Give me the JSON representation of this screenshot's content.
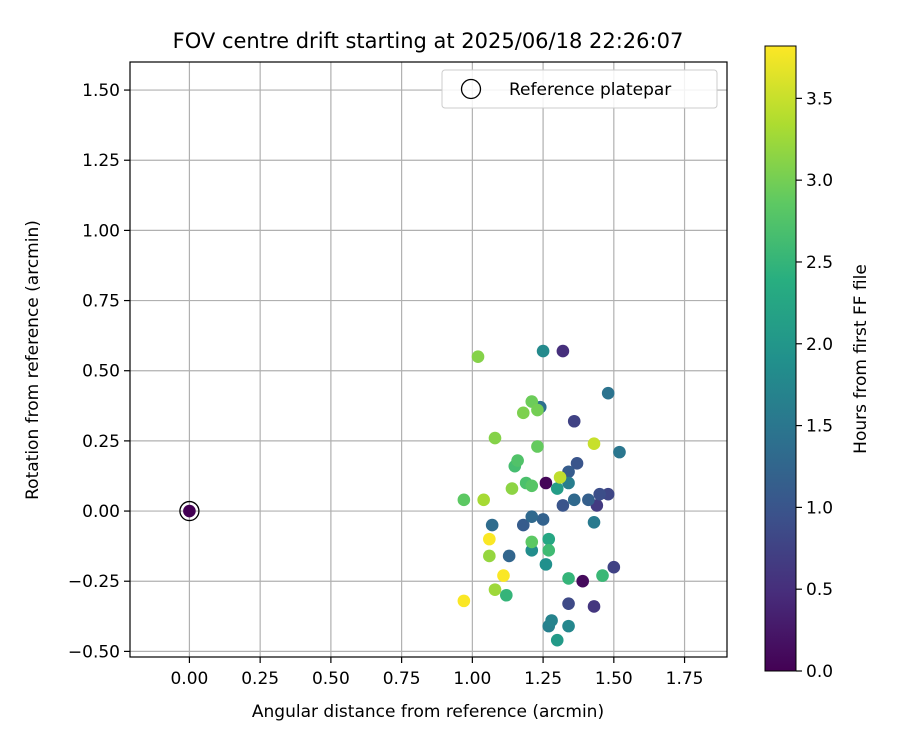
{
  "chart_data": {
    "type": "scatter",
    "title": "FOV centre drift starting at 2025/06/18 22:26:07",
    "xlabel": "Angular distance from reference (arcmin)",
    "ylabel": "Rotation from reference (arcmin)",
    "xlim": [
      -0.21,
      1.9
    ],
    "ylim": [
      -0.52,
      1.6
    ],
    "xticks": [
      0.0,
      0.25,
      0.5,
      0.75,
      1.0,
      1.25,
      1.5,
      1.75
    ],
    "xtick_labels": [
      "0.00",
      "0.25",
      "0.50",
      "0.75",
      "1.00",
      "1.25",
      "1.50",
      "1.75"
    ],
    "yticks": [
      -0.5,
      -0.25,
      0.0,
      0.25,
      0.5,
      0.75,
      1.0,
      1.25,
      1.5
    ],
    "ytick_labels": [
      "−0.50",
      "−0.25",
      "0.00",
      "0.25",
      "0.50",
      "0.75",
      "1.00",
      "1.25",
      "1.50"
    ],
    "grid": true,
    "legend": {
      "placement": "top-right",
      "label": "Reference platepar"
    },
    "reference_point": {
      "x": 0.0,
      "y": 0.0
    },
    "colorbar": {
      "label": "Hours from first FF file",
      "colormap": "viridis",
      "range": [
        0.0,
        3.82
      ],
      "ticks": [
        0.0,
        0.5,
        1.0,
        1.5,
        2.0,
        2.5,
        3.0,
        3.5
      ],
      "tick_labels": [
        "0.0",
        "0.5",
        "1.0",
        "1.5",
        "2.0",
        "2.5",
        "3.0",
        "3.5"
      ]
    },
    "points": [
      {
        "x": 0.0,
        "y": 0.0,
        "hours": 0.0
      },
      {
        "x": 1.26,
        "y": 0.1,
        "hours": 0.05
      },
      {
        "x": 1.39,
        "y": -0.25,
        "hours": 0.1
      },
      {
        "x": 1.32,
        "y": 0.57,
        "hours": 0.5
      },
      {
        "x": 1.43,
        "y": -0.34,
        "hours": 0.6
      },
      {
        "x": 1.44,
        "y": 0.02,
        "hours": 0.65
      },
      {
        "x": 1.36,
        "y": 0.32,
        "hours": 0.75
      },
      {
        "x": 1.5,
        "y": -0.2,
        "hours": 0.75
      },
      {
        "x": 1.48,
        "y": 0.06,
        "hours": 0.8
      },
      {
        "x": 1.34,
        "y": -0.33,
        "hours": 0.85
      },
      {
        "x": 1.45,
        "y": 0.06,
        "hours": 0.9
      },
      {
        "x": 1.37,
        "y": 0.17,
        "hours": 1.0
      },
      {
        "x": 1.32,
        "y": 0.02,
        "hours": 1.0
      },
      {
        "x": 1.18,
        "y": -0.05,
        "hours": 1.1
      },
      {
        "x": 1.34,
        "y": 0.14,
        "hours": 1.1
      },
      {
        "x": 1.41,
        "y": 0.04,
        "hours": 1.15
      },
      {
        "x": 1.25,
        "y": -0.03,
        "hours": 1.2
      },
      {
        "x": 1.13,
        "y": -0.16,
        "hours": 1.25
      },
      {
        "x": 1.21,
        "y": -0.02,
        "hours": 1.3
      },
      {
        "x": 1.36,
        "y": 0.04,
        "hours": 1.3
      },
      {
        "x": 1.07,
        "y": -0.05,
        "hours": 1.35
      },
      {
        "x": 1.24,
        "y": 0.37,
        "hours": 1.4
      },
      {
        "x": 1.48,
        "y": 0.42,
        "hours": 1.45
      },
      {
        "x": 1.52,
        "y": 0.21,
        "hours": 1.5
      },
      {
        "x": 1.43,
        "y": -0.04,
        "hours": 1.55
      },
      {
        "x": 1.34,
        "y": 0.1,
        "hours": 1.6
      },
      {
        "x": 1.27,
        "y": -0.41,
        "hours": 1.65
      },
      {
        "x": 1.28,
        "y": -0.39,
        "hours": 1.7
      },
      {
        "x": 1.34,
        "y": -0.41,
        "hours": 1.75
      },
      {
        "x": 1.25,
        "y": 0.57,
        "hours": 1.8
      },
      {
        "x": 1.21,
        "y": -0.14,
        "hours": 1.85
      },
      {
        "x": 1.26,
        "y": -0.19,
        "hours": 1.9
      },
      {
        "x": 1.3,
        "y": -0.46,
        "hours": 2.05
      },
      {
        "x": 1.3,
        "y": 0.08,
        "hours": 2.1
      },
      {
        "x": 1.27,
        "y": -0.1,
        "hours": 2.25
      },
      {
        "x": 1.12,
        "y": -0.3,
        "hours": 2.5
      },
      {
        "x": 1.34,
        "y": -0.24,
        "hours": 2.5
      },
      {
        "x": 1.46,
        "y": -0.23,
        "hours": 2.55
      },
      {
        "x": 1.27,
        "y": -0.14,
        "hours": 2.6
      },
      {
        "x": 1.15,
        "y": 0.16,
        "hours": 2.65
      },
      {
        "x": 1.19,
        "y": 0.1,
        "hours": 2.7
      },
      {
        "x": 1.16,
        "y": 0.18,
        "hours": 2.75
      },
      {
        "x": 1.21,
        "y": 0.09,
        "hours": 2.8
      },
      {
        "x": 1.21,
        "y": -0.11,
        "hours": 2.85
      },
      {
        "x": 0.97,
        "y": 0.04,
        "hours": 2.85
      },
      {
        "x": 1.23,
        "y": 0.23,
        "hours": 2.9
      },
      {
        "x": 1.21,
        "y": 0.39,
        "hours": 2.95
      },
      {
        "x": 1.23,
        "y": 0.36,
        "hours": 3.0
      },
      {
        "x": 1.18,
        "y": 0.35,
        "hours": 3.05
      },
      {
        "x": 1.08,
        "y": 0.26,
        "hours": 3.1
      },
      {
        "x": 1.02,
        "y": 0.55,
        "hours": 3.1
      },
      {
        "x": 1.14,
        "y": 0.08,
        "hours": 3.15
      },
      {
        "x": 1.06,
        "y": -0.16,
        "hours": 3.2
      },
      {
        "x": 1.08,
        "y": -0.28,
        "hours": 3.25
      },
      {
        "x": 1.04,
        "y": 0.04,
        "hours": 3.3
      },
      {
        "x": 1.31,
        "y": 0.12,
        "hours": 3.45
      },
      {
        "x": 1.43,
        "y": 0.24,
        "hours": 3.5
      },
      {
        "x": 1.06,
        "y": -0.1,
        "hours": 3.8
      },
      {
        "x": 1.11,
        "y": -0.23,
        "hours": 3.8
      },
      {
        "x": 0.97,
        "y": -0.32,
        "hours": 3.8
      }
    ]
  }
}
